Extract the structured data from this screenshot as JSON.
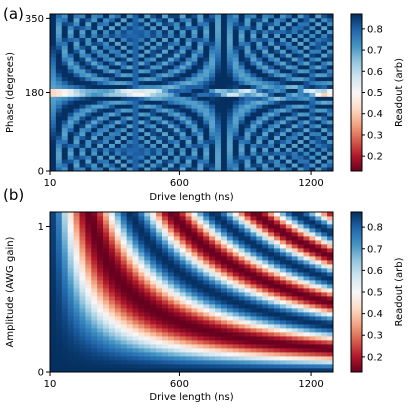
{
  "chart_data": [
    {
      "panel_label": "(a)",
      "type": "heatmap",
      "xlabel": "Drive length (ns)",
      "ylabel": "Phase (degrees)",
      "xlim": [
        10,
        1300
      ],
      "ylim": [
        0,
        360
      ],
      "x_ticks": [
        {
          "value": 10,
          "label": "10"
        },
        {
          "value": 600,
          "label": "600"
        },
        {
          "value": 1200,
          "label": "1200"
        }
      ],
      "y_ticks": [
        {
          "value": 0,
          "label": "0"
        },
        {
          "value": 180,
          "label": "180"
        },
        {
          "value": 350,
          "label": "350"
        }
      ],
      "grid": {
        "nx": 48,
        "ny": 40
      },
      "colorbar": {
        "label": "Readout (arb)",
        "range": [
          0.13,
          0.87
        ],
        "ticks": [
          "0.2",
          "0.3",
          "0.4",
          "0.5",
          "0.6",
          "0.7",
          "0.8"
        ],
        "tick_values": [
          0.2,
          0.3,
          0.4,
          0.5,
          0.6,
          0.7,
          0.8
        ],
        "colormap": "RdBu",
        "colors": [
          "#67001f",
          "#b2182b",
          "#d6604d",
          "#f4a582",
          "#fddbc7",
          "#f7f7f7",
          "#d1e5f0",
          "#92c5de",
          "#4393c3",
          "#2166ac",
          "#053061"
        ]
      },
      "pattern": "chevron fringes opening from phase 180; high readout (~0.8) away from 180, low readout (~0.15) pockets along phase 180 near drive lengths 150, 560, 950"
    },
    {
      "panel_label": "(b)",
      "type": "heatmap",
      "xlabel": "Drive length (ns)",
      "ylabel": "Amplitude (AWG gain)",
      "xlim": [
        10,
        1300
      ],
      "ylim": [
        0,
        1.1
      ],
      "x_ticks": [
        {
          "value": 10,
          "label": "10"
        },
        {
          "value": 600,
          "label": "600"
        },
        {
          "value": 1200,
          "label": "1200"
        }
      ],
      "y_ticks": [
        {
          "value": 0,
          "label": "0"
        },
        {
          "value": 1,
          "label": "1"
        }
      ],
      "grid": {
        "nx": 48,
        "ny": 40
      },
      "colorbar": {
        "label": "Readout (arb)",
        "range": [
          0.13,
          0.87
        ],
        "ticks": [
          "0.2",
          "0.3",
          "0.4",
          "0.5",
          "0.6",
          "0.7",
          "0.8"
        ],
        "tick_values": [
          0.2,
          0.3,
          0.4,
          0.5,
          0.6,
          0.7,
          0.8
        ],
        "colormap": "RdBu",
        "colors": [
          "#67001f",
          "#b2182b",
          "#d6604d",
          "#f4a582",
          "#fddbc7",
          "#f7f7f7",
          "#d1e5f0",
          "#92c5de",
          "#4393c3",
          "#2166ac",
          "#053061"
        ]
      },
      "pattern": "Rabi chevron: readout oscillates as cos(amplitude x drive length); red (low) fringes at top-left, denser stripes toward larger amplitude and longer drive"
    }
  ]
}
